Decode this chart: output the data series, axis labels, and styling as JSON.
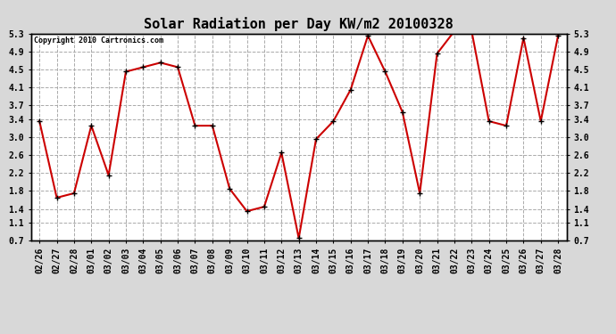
{
  "title": "Solar Radiation per Day KW/m2 20100328",
  "copyright_text": "Copyright 2010 Cartronics.com",
  "dates": [
    "02/26",
    "02/27",
    "02/28",
    "03/01",
    "03/02",
    "03/03",
    "03/04",
    "03/05",
    "03/06",
    "03/07",
    "03/08",
    "03/09",
    "03/10",
    "03/11",
    "03/12",
    "03/13",
    "03/14",
    "03/15",
    "03/16",
    "03/17",
    "03/18",
    "03/19",
    "03/20",
    "03/21",
    "03/22",
    "03/23",
    "03/24",
    "03/25",
    "03/26",
    "03/27",
    "03/28"
  ],
  "values": [
    3.35,
    1.65,
    1.75,
    3.25,
    2.15,
    4.45,
    4.55,
    4.65,
    4.55,
    3.25,
    3.25,
    1.85,
    1.35,
    1.45,
    2.65,
    0.75,
    2.95,
    3.35,
    4.05,
    5.25,
    4.45,
    3.55,
    1.75,
    4.85,
    5.35,
    5.35,
    3.35,
    3.25,
    5.2,
    3.35,
    5.25
  ],
  "ylim": [
    0.7,
    5.3
  ],
  "yticks": [
    0.7,
    1.1,
    1.4,
    1.8,
    2.2,
    2.6,
    3.0,
    3.4,
    3.7,
    4.1,
    4.5,
    4.9,
    5.3
  ],
  "line_color": "#cc0000",
  "marker_color": "#000000",
  "plot_bg_color": "#ffffff",
  "fig_bg_color": "#d8d8d8",
  "grid_color": "#aaaaaa",
  "title_fontsize": 11,
  "copyright_fontsize": 6,
  "tick_fontsize": 7
}
